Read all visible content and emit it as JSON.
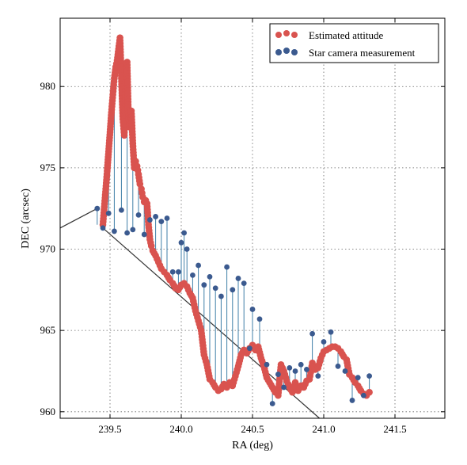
{
  "chart_data": {
    "type": "scatter",
    "xlabel": "RA (deg)",
    "ylabel": "DEC (arcsec)",
    "xlim": [
      239.15,
      241.85
    ],
    "ylim": [
      959.6,
      984.2
    ],
    "xticks": [
      239.5,
      240.0,
      240.5,
      241.0,
      241.5
    ],
    "xtick_labels": [
      "239.5",
      "240.0",
      "240.5",
      "241.0",
      "241.5"
    ],
    "yticks": [
      960,
      965,
      970,
      975,
      980
    ],
    "ytick_labels": [
      "960",
      "965",
      "970",
      "975",
      "980"
    ],
    "grid": true,
    "legend_position": "top-right",
    "colors": {
      "estimated": "#d9534f",
      "measurement": "#3b5a8f",
      "connector": "#3f7fa8",
      "reference_line": "#333333"
    },
    "series": [
      {
        "name": "Estimated attitude",
        "x": [
          239.45,
          239.46,
          239.47,
          239.48,
          239.49,
          239.5,
          239.51,
          239.52,
          239.53,
          239.54,
          239.55,
          239.56,
          239.57,
          239.58,
          239.59,
          239.6,
          239.61,
          239.62,
          239.63,
          239.64,
          239.65,
          239.66,
          239.67,
          239.68,
          239.69,
          239.7,
          239.71,
          239.72,
          239.73,
          239.74,
          239.75,
          239.76,
          239.77,
          239.78,
          239.79,
          239.8,
          239.82,
          239.84,
          239.86,
          239.88,
          239.9,
          239.92,
          239.94,
          239.96,
          239.98,
          240.0,
          240.02,
          240.04,
          240.06,
          240.08,
          240.1,
          240.12,
          240.14,
          240.16,
          240.18,
          240.2,
          240.22,
          240.24,
          240.26,
          240.28,
          240.3,
          240.32,
          240.34,
          240.36,
          240.38,
          240.4,
          240.42,
          240.44,
          240.46,
          240.48,
          240.5,
          240.52,
          240.54,
          240.56,
          240.58,
          240.6,
          240.62,
          240.64,
          240.66,
          240.68,
          240.7,
          240.72,
          240.74,
          240.76,
          240.78,
          240.8,
          240.82,
          240.84,
          240.86,
          240.88,
          240.9,
          240.92,
          240.94,
          240.96,
          240.98,
          241.0,
          241.02,
          241.04,
          241.06,
          241.08,
          241.1,
          241.12,
          241.14,
          241.16,
          241.18,
          241.2,
          241.22,
          241.24,
          241.26,
          241.28,
          241.3,
          241.32
        ],
        "y": [
          971.5,
          972.6,
          973.7,
          974.8,
          976.0,
          977.2,
          978.4,
          979.5,
          980.5,
          981.2,
          981.6,
          982.3,
          983.0,
          980.5,
          978.0,
          977.0,
          979.5,
          981.5,
          978.0,
          977.5,
          978.5,
          976.5,
          975.0,
          975.4,
          975.1,
          974.6,
          974.0,
          973.7,
          973.2,
          972.9,
          973.0,
          972.8,
          971.5,
          970.6,
          970.2,
          969.9,
          969.6,
          969.2,
          968.8,
          968.6,
          968.4,
          968.1,
          967.9,
          967.6,
          967.5,
          967.8,
          967.9,
          967.7,
          967.3,
          967.0,
          966.2,
          965.6,
          965.0,
          963.5,
          962.9,
          962.0,
          961.8,
          961.5,
          961.3,
          961.4,
          961.7,
          961.5,
          961.8,
          961.6,
          962.2,
          962.8,
          963.5,
          963.8,
          963.6,
          963.9,
          964.1,
          963.8,
          964.0,
          963.3,
          962.8,
          962.1,
          961.8,
          961.5,
          961.2,
          961.0,
          962.9,
          962.5,
          961.9,
          961.5,
          961.2,
          961.8,
          961.3,
          961.6,
          961.5,
          961.9,
          962.0,
          963.0,
          962.6,
          962.7,
          963.3,
          963.7,
          963.8,
          963.9,
          964.0,
          964.0,
          963.9,
          963.7,
          963.4,
          963.2,
          962.3,
          962.1,
          961.8,
          961.6,
          961.3,
          961.1,
          961.0,
          961.2
        ],
        "color": "#d9534f"
      },
      {
        "name": "Star camera measurement",
        "x": [
          239.41,
          239.45,
          239.49,
          239.53,
          239.58,
          239.62,
          239.66,
          239.7,
          239.74,
          239.78,
          239.82,
          239.86,
          239.9,
          239.94,
          239.98,
          240.0,
          240.02,
          240.04,
          240.08,
          240.12,
          240.16,
          240.2,
          240.24,
          240.28,
          240.32,
          240.36,
          240.4,
          240.44,
          240.48,
          240.5,
          240.55,
          240.6,
          240.64,
          240.68,
          240.72,
          240.76,
          240.8,
          240.84,
          240.88,
          240.92,
          240.96,
          241.0,
          241.05,
          241.1,
          241.15,
          241.2,
          241.24,
          241.28,
          241.32
        ],
        "y": [
          972.5,
          971.3,
          972.2,
          971.1,
          972.4,
          971.0,
          971.2,
          972.1,
          970.9,
          971.8,
          972.0,
          971.7,
          971.9,
          968.6,
          968.6,
          970.4,
          971.0,
          970.0,
          968.4,
          969.0,
          967.8,
          968.3,
          967.6,
          967.1,
          968.9,
          967.5,
          968.2,
          967.9,
          963.9,
          966.3,
          965.7,
          962.9,
          960.5,
          962.3,
          961.5,
          962.7,
          962.5,
          962.9,
          962.6,
          964.8,
          962.2,
          964.3,
          964.9,
          962.8,
          962.5,
          960.7,
          962.1,
          961.0,
          962.2
        ],
        "color": "#3b5a8f"
      }
    ],
    "reference_lines": [
      {
        "x": [
          239.15,
          239.41
        ],
        "y": [
          971.3,
          972.5
        ]
      },
      {
        "x": [
          239.45,
          240.97
        ],
        "y": [
          971.3,
          959.6
        ]
      }
    ]
  },
  "legend": {
    "items": [
      {
        "label": "Estimated attitude",
        "color": "#d9534f"
      },
      {
        "label": "Star camera measurement",
        "color": "#3b5a8f"
      }
    ]
  }
}
